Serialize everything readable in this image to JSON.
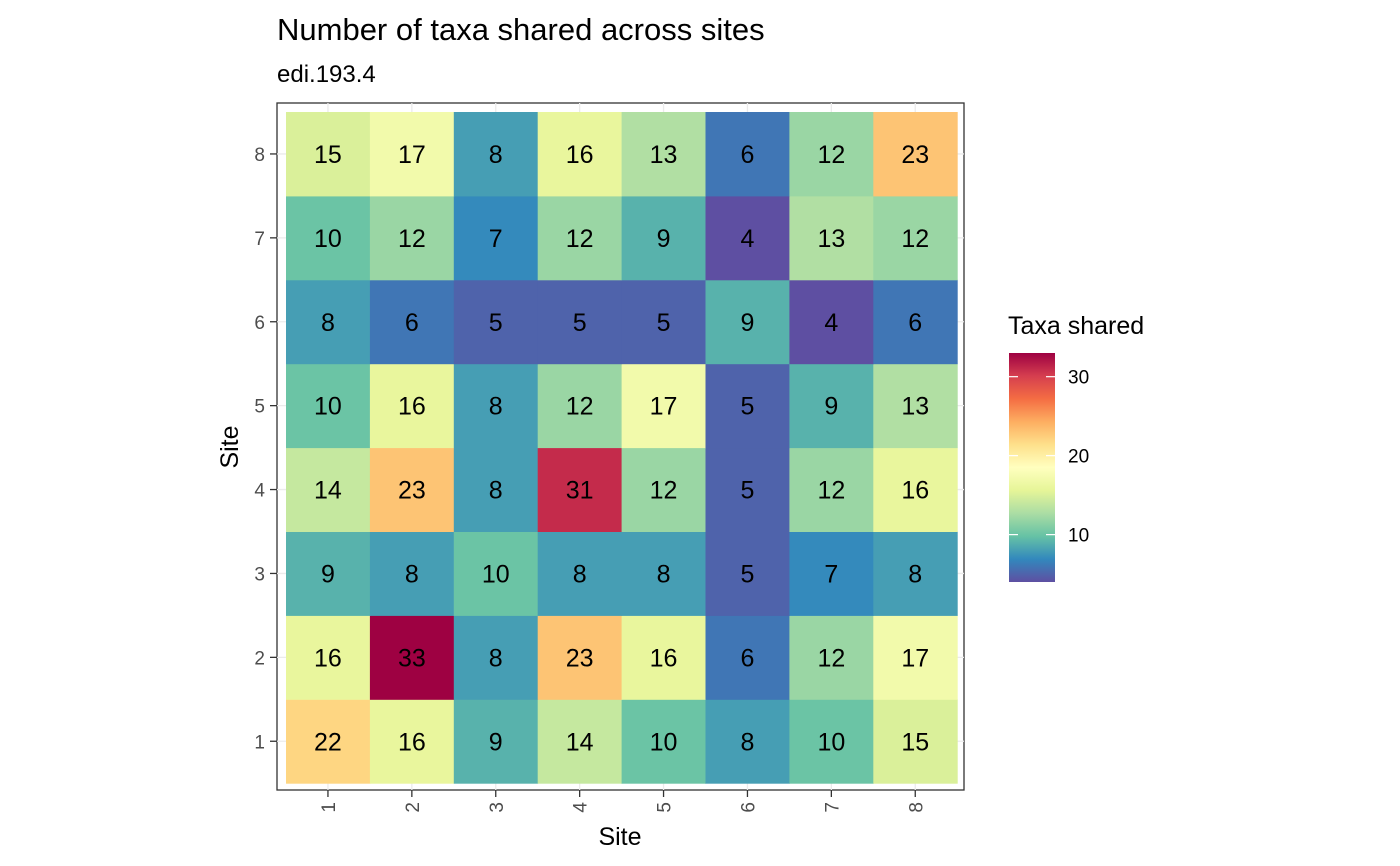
{
  "chart_data": {
    "type": "heatmap",
    "title": "Number of taxa shared across sites",
    "subtitle": "edi.193.4",
    "xlabel": "Site",
    "ylabel": "Site",
    "x_categories": [
      "1",
      "2",
      "3",
      "4",
      "5",
      "6",
      "7",
      "8"
    ],
    "y_categories": [
      "1",
      "2",
      "3",
      "4",
      "5",
      "6",
      "7",
      "8"
    ],
    "values_by_y": {
      "1": [
        22,
        16,
        9,
        14,
        10,
        8,
        10,
        15
      ],
      "2": [
        16,
        33,
        8,
        23,
        16,
        6,
        12,
        17
      ],
      "3": [
        9,
        8,
        10,
        8,
        8,
        5,
        7,
        8
      ],
      "4": [
        14,
        23,
        8,
        31,
        12,
        5,
        12,
        16
      ],
      "5": [
        10,
        16,
        8,
        12,
        17,
        5,
        9,
        13
      ],
      "6": [
        8,
        6,
        5,
        5,
        5,
        9,
        4,
        6
      ],
      "7": [
        10,
        12,
        7,
        12,
        9,
        4,
        13,
        12
      ],
      "8": [
        15,
        17,
        8,
        16,
        13,
        6,
        12,
        23
      ]
    },
    "color_range": [
      4,
      33
    ],
    "colors": [
      "#5E4FA2",
      "#3288BD",
      "#66C2A5",
      "#ABDDA4",
      "#E6F598",
      "#FFFFBF",
      "#FEE08B",
      "#FDAE61",
      "#F46D43",
      "#D53E4F",
      "#9E0142"
    ],
    "legend": {
      "title": "Taxa shared",
      "ticks": [
        10,
        20,
        30
      ],
      "position": "right"
    },
    "grid": true
  }
}
